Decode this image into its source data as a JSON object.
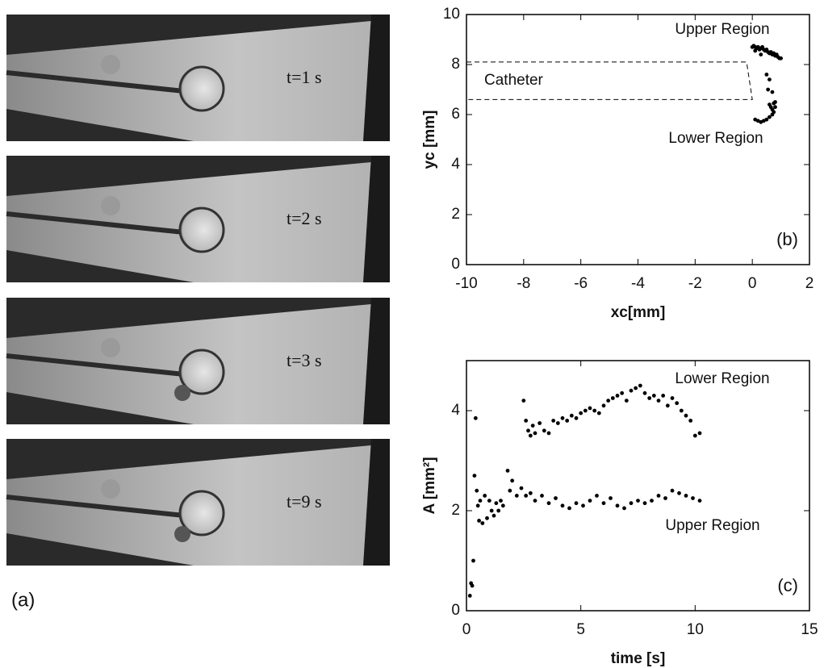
{
  "panel_a": {
    "label": "(a)",
    "frames": [
      "t=1 s",
      "t=2 s",
      "t=3 s",
      "t=9 s"
    ]
  },
  "chart_data": [
    {
      "type": "scatter",
      "panel_label": "(b)",
      "x_label": "xc[mm]",
      "y_label": "yc [mm]",
      "annotation": "Catheter",
      "xlim": [
        -10,
        2
      ],
      "ylim": [
        0,
        10
      ],
      "xticks": [
        -10,
        -8,
        -6,
        -4,
        -2,
        0,
        2
      ],
      "yticks": [
        0,
        2,
        4,
        6,
        8,
        10
      ],
      "series": [
        {
          "name": "Upper Region",
          "color": "#000000",
          "x": [
            0,
            0.05,
            0.1,
            0.15,
            0.2,
            0.25,
            0.3,
            0.35,
            0.4,
            0.45,
            0.5,
            0.55,
            0.6,
            0.65,
            0.7,
            0.75,
            0.8,
            0.85,
            0.9,
            0.95,
            1.0,
            0.3,
            0.1
          ],
          "values": [
            8.7,
            8.75,
            8.7,
            8.65,
            8.7,
            8.6,
            8.65,
            8.7,
            8.6,
            8.55,
            8.6,
            8.5,
            8.45,
            8.5,
            8.4,
            8.45,
            8.35,
            8.4,
            8.3,
            8.25,
            8.25,
            8.4,
            8.55
          ]
        },
        {
          "name": "Lower Region",
          "color": "#000000",
          "x": [
            0.5,
            0.6,
            0.55,
            0.7,
            0.6,
            0.65,
            0.7,
            0.75,
            0.8,
            0.7,
            0.6,
            0.5,
            0.4,
            0.3,
            0.2,
            0.1,
            0.75,
            0.8
          ],
          "values": [
            7.6,
            7.4,
            7.0,
            6.9,
            6.4,
            6.3,
            6.2,
            6.45,
            6.5,
            6.0,
            5.9,
            5.8,
            5.75,
            5.7,
            5.75,
            5.8,
            6.1,
            6.3
          ]
        }
      ]
    },
    {
      "type": "scatter",
      "panel_label": "(c)",
      "x_label": "time [s]",
      "y_label": "A [mm²]",
      "xlim": [
        0,
        15
      ],
      "ylim": [
        0,
        5
      ],
      "xticks": [
        0,
        5,
        10,
        15
      ],
      "yticks": [
        0,
        2,
        4
      ],
      "series": [
        {
          "name": "Lower Region",
          "color": "#000000",
          "x": [
            2.5,
            2.6,
            2.7,
            2.8,
            2.9,
            3.0,
            3.2,
            3.4,
            3.6,
            3.8,
            4.0,
            4.2,
            4.4,
            4.6,
            4.8,
            5.0,
            5.2,
            5.4,
            5.6,
            5.8,
            6.0,
            6.2,
            6.4,
            6.6,
            6.8,
            7.0,
            7.2,
            7.4,
            7.6,
            7.8,
            8.0,
            8.2,
            8.4,
            8.6,
            8.8,
            9.0,
            9.2,
            9.4,
            9.6,
            9.8,
            10.0,
            10.2
          ],
          "values": [
            4.2,
            3.8,
            3.6,
            3.5,
            3.7,
            3.55,
            3.75,
            3.6,
            3.55,
            3.8,
            3.75,
            3.85,
            3.8,
            3.9,
            3.85,
            3.95,
            4.0,
            4.05,
            4.0,
            3.95,
            4.1,
            4.2,
            4.25,
            4.3,
            4.35,
            4.2,
            4.4,
            4.45,
            4.5,
            4.35,
            4.25,
            4.3,
            4.2,
            4.3,
            4.1,
            4.25,
            4.15,
            4.0,
            3.9,
            3.8,
            3.5,
            3.55
          ]
        },
        {
          "name": "Upper Region",
          "color": "#000000",
          "x": [
            0.15,
            0.2,
            0.25,
            0.3,
            0.35,
            0.4,
            0.45,
            0.5,
            0.55,
            0.6,
            0.7,
            0.8,
            0.9,
            1.0,
            1.1,
            1.2,
            1.3,
            1.4,
            1.5,
            1.6,
            1.8,
            1.9,
            2.0,
            2.2,
            2.4,
            2.6,
            2.8,
            3.0,
            3.3,
            3.6,
            3.9,
            4.2,
            4.5,
            4.8,
            5.1,
            5.4,
            5.7,
            6.0,
            6.3,
            6.6,
            6.9,
            7.2,
            7.5,
            7.8,
            8.1,
            8.4,
            8.7,
            9.0,
            9.3,
            9.6,
            9.9,
            10.2
          ],
          "values": [
            0.3,
            0.55,
            0.5,
            1.0,
            2.7,
            3.85,
            2.4,
            2.1,
            1.8,
            2.2,
            1.75,
            2.3,
            1.85,
            2.2,
            2.0,
            1.9,
            2.15,
            2.0,
            2.2,
            2.1,
            2.8,
            2.4,
            2.6,
            2.3,
            2.45,
            2.3,
            2.35,
            2.2,
            2.3,
            2.15,
            2.25,
            2.1,
            2.05,
            2.15,
            2.1,
            2.2,
            2.3,
            2.15,
            2.25,
            2.1,
            2.05,
            2.15,
            2.2,
            2.15,
            2.2,
            2.3,
            2.25,
            2.4,
            2.35,
            2.3,
            2.25,
            2.2
          ]
        }
      ]
    }
  ]
}
